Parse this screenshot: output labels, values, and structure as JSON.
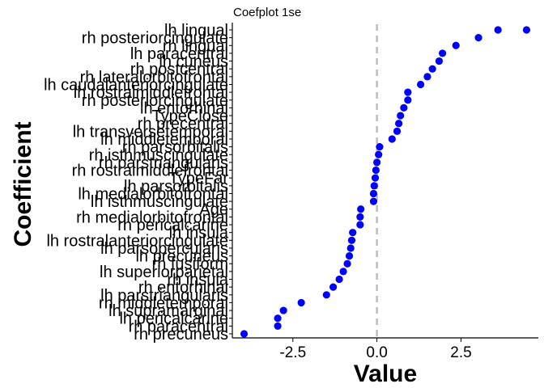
{
  "chart_data": {
    "type": "scatter",
    "title": "Coefplot 1se",
    "xlabel": "Value",
    "ylabel": "Coefficient",
    "xlim": [
      -4.3,
      4.8
    ],
    "xticks": [
      -2.5,
      0.0,
      2.5
    ],
    "xtick_labels": [
      "-2.5",
      "0.0",
      "2.5"
    ],
    "reference_line": {
      "x": 0,
      "style": "dashed",
      "color": "#bdbdbd"
    },
    "point_color": "#0000ff",
    "grid": false,
    "legend": "none",
    "categories": [
      "rh precuneus",
      "rh paracentral",
      "lh pericalcarine",
      "lh supramarginal",
      "rh middletemporal",
      "lh parstriangularis",
      "rh entorhinal",
      "rh insula",
      "lh superiorparietal",
      "rh fusiform",
      "lh precuneus",
      "lh parsopercularis",
      "lh rostralanteriorcingulate",
      "lh insula",
      "rh pericalcarine",
      "rh medialorbitofrontal",
      "Age",
      "lh isthmuscingulate",
      "lh medialorbitofrontal",
      "lh parsorbitalis",
      "TypeFar",
      "rh rostralmiddlefrontal",
      "rh parstriangularis",
      "rh isthmuscingulate",
      "rh parsorbitalis",
      "lh middletemporal",
      "lh transversetemporal",
      "rh precentral",
      "TypeClose",
      "lh entorhinal",
      "rh posteriorcingulate",
      "lh rostralmiddlefrontal",
      "lh caudalanteriorcingulate",
      "rh lateralorbitofrontal",
      "rh postcentral",
      "lh cuneus",
      "lh paracentral",
      "rh lingual",
      "rh posteriorcingulate",
      "lh lingual"
    ],
    "values": [
      -3.95,
      -2.95,
      -2.95,
      -2.78,
      -2.25,
      -1.5,
      -1.3,
      -1.12,
      -1.0,
      -0.88,
      -0.82,
      -0.78,
      -0.75,
      -0.72,
      -0.5,
      -0.5,
      -0.48,
      -0.1,
      -0.1,
      -0.08,
      -0.05,
      -0.03,
      0.0,
      0.05,
      0.08,
      0.45,
      0.6,
      0.65,
      0.7,
      0.8,
      0.92,
      0.92,
      1.3,
      1.5,
      1.65,
      1.85,
      1.95,
      2.35,
      3.02,
      3.6
    ],
    "top_value": 4.45
  }
}
